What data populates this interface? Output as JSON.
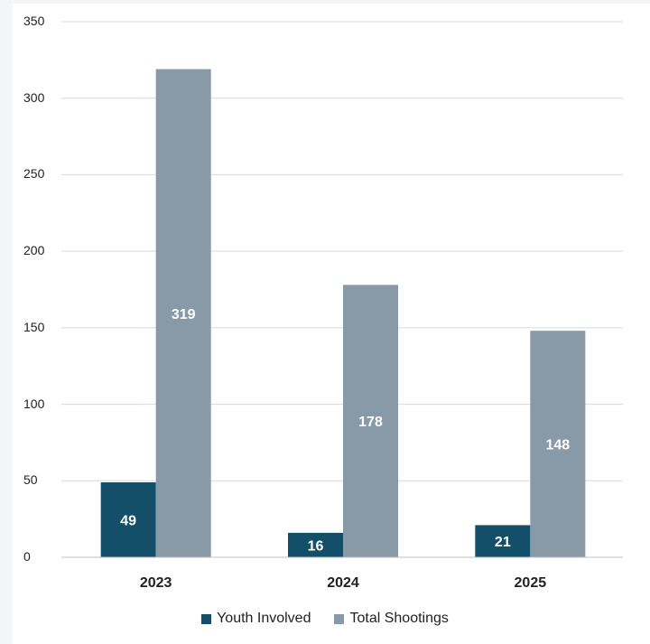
{
  "chart_data": {
    "type": "bar",
    "categories": [
      "2023",
      "2024",
      "2025"
    ],
    "series": [
      {
        "name": "Youth Involved",
        "values": [
          49,
          16,
          21
        ],
        "color": "#134f69"
      },
      {
        "name": "Total Shootings",
        "values": [
          319,
          178,
          148
        ],
        "color": "#8899a8"
      }
    ],
    "ylim": [
      0,
      350
    ],
    "yticks": [
      "0",
      "50",
      "100",
      "150",
      "200",
      "250",
      "300",
      "350"
    ],
    "grid": true,
    "legend_position": "bottom",
    "data_label_color": "#ffffff",
    "gridline_color": "#d9d9d9"
  }
}
